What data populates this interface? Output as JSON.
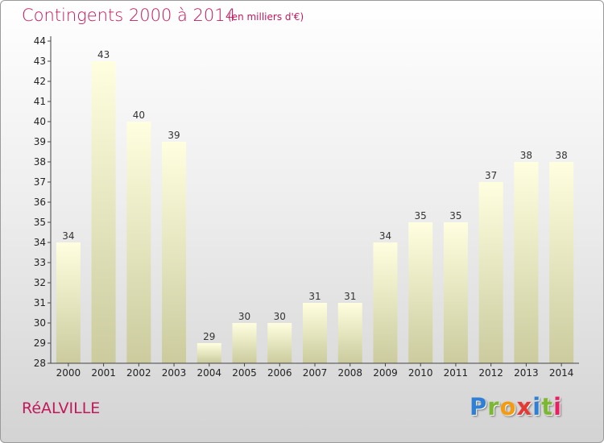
{
  "chart_data": {
    "type": "bar",
    "title": "Contingents 2000 à 2014",
    "subtitle": "(en milliers d'€)",
    "categories": [
      "2000",
      "2001",
      "2002",
      "2003",
      "2004",
      "2005",
      "2006",
      "2007",
      "2008",
      "2009",
      "2010",
      "2011",
      "2012",
      "2013",
      "2014"
    ],
    "values": [
      34,
      43,
      40,
      39,
      29,
      30,
      30,
      31,
      31,
      34,
      35,
      35,
      37,
      38,
      38
    ],
    "ylim": [
      28,
      44
    ],
    "yticks": [
      28,
      29,
      30,
      31,
      32,
      33,
      34,
      35,
      36,
      37,
      38,
      39,
      40,
      41,
      42,
      43,
      44
    ],
    "xlabel": "",
    "ylabel": "",
    "grid": false,
    "colors": {
      "bar_top": "#ffffe0",
      "bar_bottom": "#cbcb9e",
      "accent": "#c2185b"
    }
  },
  "footer": {
    "commune": "RéALVILLE",
    "logo_letters": [
      {
        "char": "P",
        "color": "#2e7fd6"
      },
      {
        "char": "r",
        "color": "#7cb832"
      },
      {
        "char": "o",
        "color": "#f39c12"
      },
      {
        "char": "x",
        "color": "#e53935"
      },
      {
        "char": "i",
        "color": "#2e7fd6"
      },
      {
        "char": "t",
        "color": "#7cb832"
      },
      {
        "char": "i",
        "color": "#e91e63"
      }
    ]
  }
}
